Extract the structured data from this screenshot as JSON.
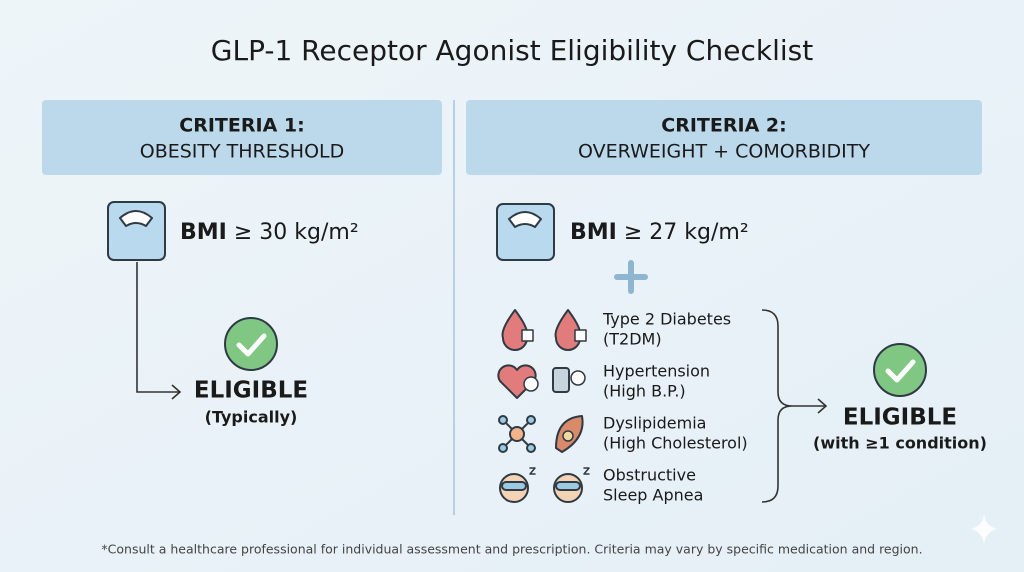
{
  "title": "GLP-1 Receptor Agonist Eligibility Checklist",
  "criteria": [
    {
      "heading": "CRITERIA 1:",
      "subheading": "OBESITY THRESHOLD",
      "bmi_label": "BMI",
      "bmi_value": "≥ 30 kg/m²",
      "result": "ELIGIBLE",
      "result_note": "(Typically)"
    },
    {
      "heading": "CRITERIA 2:",
      "subheading": "OVERWEIGHT + COMORBIDITY",
      "bmi_label": "BMI",
      "bmi_value": "≥ 27 kg/m²",
      "conditions": [
        {
          "line1": "Type 2 Diabetes",
          "line2": "(T2DM)"
        },
        {
          "line1": "Hypertension",
          "line2": "(High B.P.)"
        },
        {
          "line1": "Dyslipidemia",
          "line2": "(High Cholesterol)"
        },
        {
          "line1": "Obstructive",
          "line2": "Sleep Apnea"
        }
      ],
      "result": "ELIGIBLE",
      "result_note": "(with ≥1 condition)"
    }
  ],
  "footnote": "*Consult a healthcare professional for individual assessment and prescription. Criteria may vary by specific medication and region."
}
